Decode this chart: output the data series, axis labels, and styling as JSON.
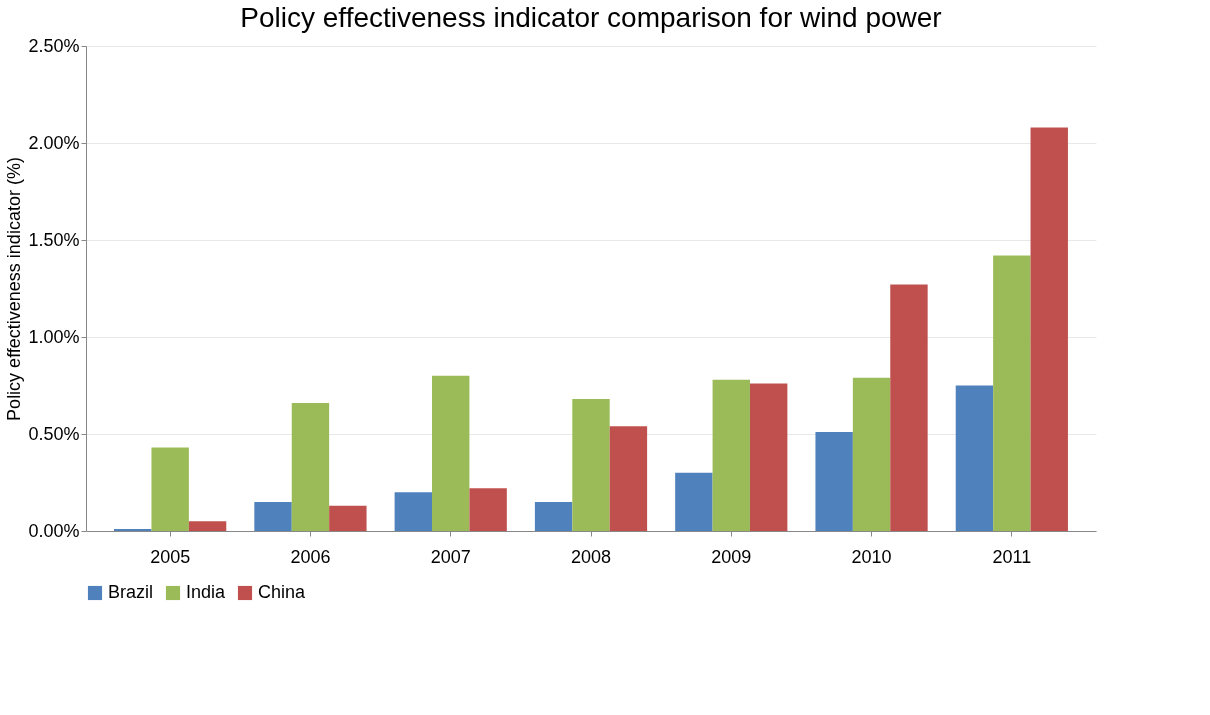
{
  "chart_data": {
    "type": "bar",
    "title": "Policy effectiveness indicator comparison for wind power",
    "ylabel": "Policy effectiveness indicator (%)",
    "categories": [
      "2005",
      "2006",
      "2007",
      "2008",
      "2009",
      "2010",
      "2011"
    ],
    "series": [
      {
        "name": "Brazil",
        "color": "#4f81bd",
        "values": [
          0.01,
          0.15,
          0.2,
          0.15,
          0.3,
          0.51,
          0.75
        ]
      },
      {
        "name": "India",
        "color": "#9bbb59",
        "values": [
          0.43,
          0.66,
          0.8,
          0.68,
          0.78,
          0.79,
          1.42
        ]
      },
      {
        "name": "China",
        "color": "#c0504d",
        "values": [
          0.05,
          0.13,
          0.22,
          0.54,
          0.76,
          1.27,
          2.08
        ]
      }
    ],
    "ylim": [
      0,
      2.5
    ],
    "yticks": [
      {
        "value": 0,
        "label": "0.00%"
      },
      {
        "value": 0.5,
        "label": "0.50%"
      },
      {
        "value": 1,
        "label": "1.00%"
      },
      {
        "value": 1.5,
        "label": "1.50%"
      },
      {
        "value": 2,
        "label": "2.00%"
      },
      {
        "value": 2.5,
        "label": "2.50%"
      }
    ],
    "grid": "y",
    "legend": "bottom"
  }
}
